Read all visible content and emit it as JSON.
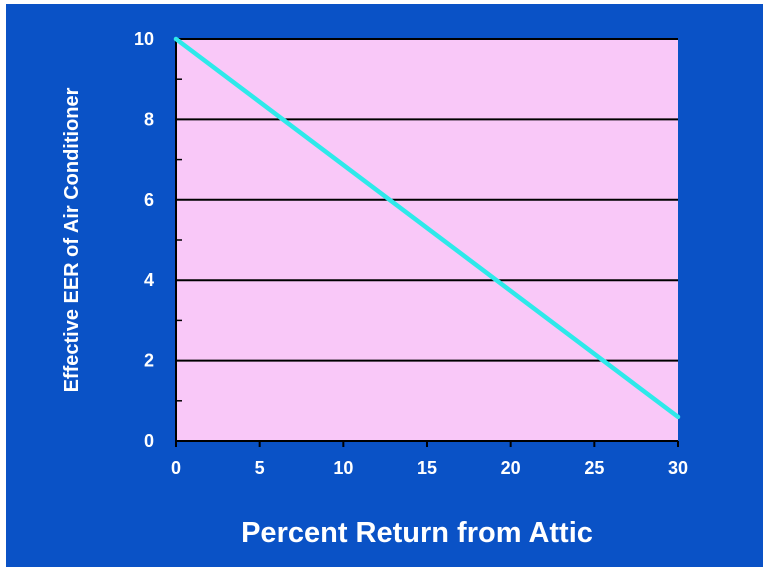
{
  "chart_data": {
    "type": "line",
    "title": "",
    "xlabel": "Percent Return from Attic",
    "ylabel": "Effective EER of Air Conditioner",
    "x": [
      0,
      30
    ],
    "series": [
      {
        "values": [
          10,
          0.6
        ]
      }
    ],
    "xlim": [
      0,
      30
    ],
    "ylim": [
      0,
      10
    ],
    "xticks": [
      "0",
      "5",
      "10",
      "15",
      "20",
      "25",
      "30"
    ],
    "yticks": [
      "0",
      "2",
      "4",
      "6",
      "8",
      "10"
    ],
    "grid": "horizontal",
    "legend": "none"
  },
  "colors": {
    "background": "#0a52c6",
    "plot_area": "#f9c8f8",
    "line": "#2ee9ea",
    "text": "#ffffff",
    "grid": "#000000"
  }
}
